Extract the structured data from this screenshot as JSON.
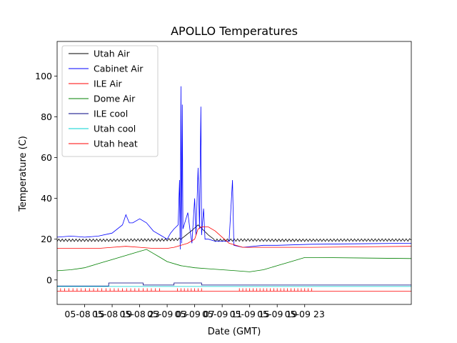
{
  "chart_data": {
    "type": "line",
    "title": "APOLLO Temperatures",
    "xlabel": "Date (GMT)",
    "ylabel": "Temperature (C)",
    "xlim_hours": [
      -2.0,
      49.5
    ],
    "ylim": [
      -12,
      117
    ],
    "x_ticks": [
      {
        "h": 2,
        "label": "05-08 15"
      },
      {
        "h": 6,
        "label": "05-08 19"
      },
      {
        "h": 10,
        "label": "05-08 23"
      },
      {
        "h": 14,
        "label": "05-09 03"
      },
      {
        "h": 18,
        "label": "05-09 07"
      },
      {
        "h": 22,
        "label": "05-09 11"
      },
      {
        "h": 26,
        "label": "05-09 15"
      },
      {
        "h": 30,
        "label": "05-09 19"
      },
      {
        "h": 34,
        "label": "05-09 23"
      }
    ],
    "x_time_axis_note": "hours since 05-08 13:00 GMT",
    "y_ticks": [
      0,
      20,
      40,
      60,
      80,
      100
    ],
    "legend_position": "top-left",
    "series": [
      {
        "name": "Utah Air",
        "color": "#000000",
        "points": [
          [
            -2,
            19.5
          ],
          [
            2,
            19.5
          ],
          [
            6,
            19.5
          ],
          [
            10,
            19.6
          ],
          [
            13,
            19.6
          ],
          [
            16,
            20
          ],
          [
            17.5,
            24
          ],
          [
            18.5,
            27
          ],
          [
            20,
            22
          ],
          [
            21,
            19.5
          ],
          [
            26,
            19.6
          ],
          [
            30,
            19.5
          ],
          [
            34,
            19.5
          ],
          [
            49.5,
            19.6
          ]
        ],
        "sawtooth_amplitude": 0.6
      },
      {
        "name": "Cabinet Air",
        "color": "#0000ff",
        "points": [
          [
            -2,
            21
          ],
          [
            0,
            21.5
          ],
          [
            2,
            21
          ],
          [
            4,
            21.5
          ],
          [
            6,
            23
          ],
          [
            7.5,
            27
          ],
          [
            8,
            32
          ],
          [
            8.5,
            28
          ],
          [
            9,
            28
          ],
          [
            10,
            30
          ],
          [
            11,
            28
          ],
          [
            12,
            24
          ],
          [
            13,
            22
          ],
          [
            14,
            20
          ],
          [
            14.5,
            23
          ],
          [
            15,
            25
          ],
          [
            15.6,
            27
          ],
          [
            15.8,
            49
          ],
          [
            15.9,
            15
          ],
          [
            16,
            95
          ],
          [
            16.1,
            18
          ],
          [
            16.2,
            86
          ],
          [
            16.3,
            25
          ],
          [
            17,
            33
          ],
          [
            17.3,
            25
          ],
          [
            17.6,
            18
          ],
          [
            18,
            40
          ],
          [
            18.2,
            22
          ],
          [
            18.5,
            55
          ],
          [
            18.7,
            25
          ],
          [
            18.9,
            85
          ],
          [
            19,
            22
          ],
          [
            19.3,
            35
          ],
          [
            19.5,
            20
          ],
          [
            20,
            20
          ],
          [
            21,
            19
          ],
          [
            23,
            19
          ],
          [
            23.5,
            49
          ],
          [
            23.7,
            17
          ],
          [
            25,
            16
          ],
          [
            28,
            17
          ],
          [
            30,
            17
          ],
          [
            35,
            17.5
          ],
          [
            49.5,
            18
          ]
        ]
      },
      {
        "name": "ILE Air",
        "color": "#ff0000",
        "points": [
          [
            -2,
            15.5
          ],
          [
            2,
            15.5
          ],
          [
            4,
            15.5
          ],
          [
            6,
            16
          ],
          [
            8,
            16.5
          ],
          [
            10,
            16
          ],
          [
            12,
            15.5
          ],
          [
            14,
            15.5
          ],
          [
            15,
            16
          ],
          [
            16,
            17
          ],
          [
            17,
            18
          ],
          [
            18,
            20
          ],
          [
            18.5,
            25
          ],
          [
            19,
            26
          ],
          [
            20,
            26
          ],
          [
            21,
            24
          ],
          [
            22,
            21
          ],
          [
            23,
            18
          ],
          [
            25,
            16
          ],
          [
            28,
            16
          ],
          [
            30,
            16
          ],
          [
            35,
            16
          ],
          [
            49.5,
            16.5
          ]
        ]
      },
      {
        "name": "Dome Air",
        "color": "#008000",
        "points": [
          [
            -2,
            4.5
          ],
          [
            0,
            5
          ],
          [
            2,
            6
          ],
          [
            4,
            8
          ],
          [
            6,
            10
          ],
          [
            8,
            12
          ],
          [
            10,
            14
          ],
          [
            11,
            15
          ],
          [
            12,
            13
          ],
          [
            13,
            11
          ],
          [
            14,
            9
          ],
          [
            16,
            7
          ],
          [
            18,
            6
          ],
          [
            20,
            5.5
          ],
          [
            22,
            5
          ],
          [
            24,
            4.5
          ],
          [
            26,
            4
          ],
          [
            28,
            5
          ],
          [
            30,
            7
          ],
          [
            32,
            9
          ],
          [
            34,
            11
          ],
          [
            36,
            11
          ],
          [
            49.5,
            10.5
          ]
        ]
      },
      {
        "name": "ILE cool",
        "color": "#000080",
        "points": [
          [
            -2,
            -3
          ],
          [
            5.5,
            -3
          ],
          [
            5.5,
            -1.5
          ],
          [
            10.5,
            -1.5
          ],
          [
            10.5,
            -2.5
          ],
          [
            15,
            -2.5
          ],
          [
            15,
            -1.5
          ],
          [
            19,
            -1.5
          ],
          [
            19,
            -2.5
          ],
          [
            49.5,
            -2.5
          ]
        ]
      },
      {
        "name": "Utah cool",
        "color": "#00d0d0",
        "points": [
          [
            -2,
            -3.2
          ],
          [
            49.5,
            -3.2
          ]
        ]
      },
      {
        "name": "Utah heat",
        "color": "#ff0000",
        "points": [
          [
            -2,
            -5.5
          ],
          [
            49.5,
            -5.5
          ]
        ],
        "tick_marks_hours": [
          -1.5,
          -0.9,
          -0.3,
          0.3,
          0.9,
          1.5,
          2.1,
          2.7,
          3.3,
          3.9,
          4.5,
          5.1,
          5.7,
          6.3,
          6.9,
          7.5,
          8.1,
          8.7,
          9.3,
          9.9,
          10.5,
          11.1,
          11.7,
          12.3,
          12.9,
          15.5,
          16.0,
          16.5,
          17.0,
          17.5,
          18.0,
          18.5,
          19.0,
          24.5,
          25.0,
          25.5,
          26.0,
          26.5,
          27.0,
          27.5,
          28.0,
          28.5,
          29.0,
          29.5,
          30.0,
          30.5,
          31.0,
          31.5,
          32.0,
          32.5,
          33.0,
          33.5,
          34.0,
          34.5,
          35.0
        ]
      }
    ]
  }
}
